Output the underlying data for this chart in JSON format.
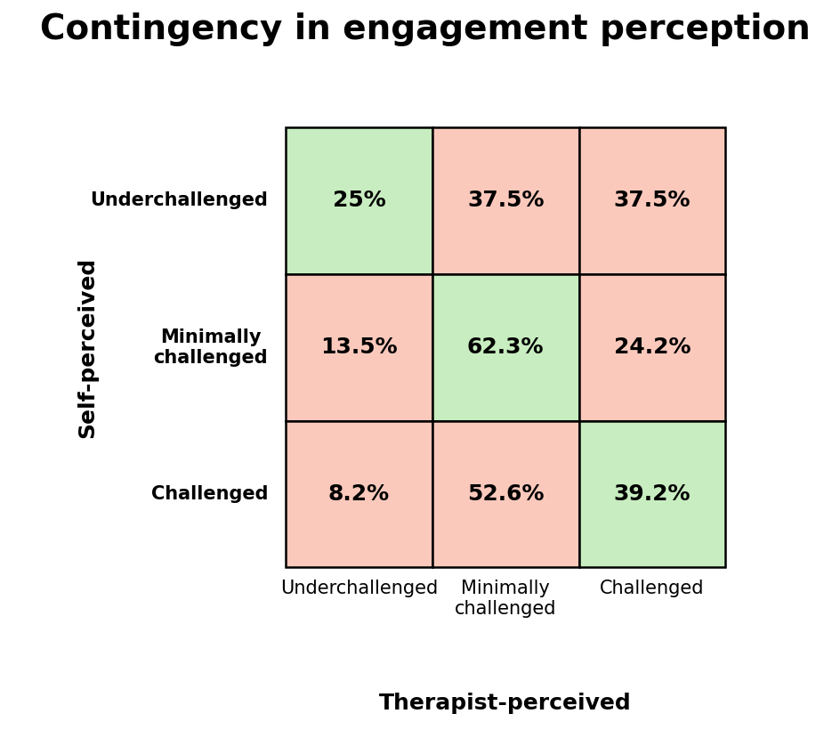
{
  "title": "Contingency in engagement perception",
  "xlabel": "Therapist-perceived",
  "ylabel": "Self-perceived",
  "row_labels": [
    "Underchallenged",
    "Minimally\nchallenged",
    "Challenged"
  ],
  "col_labels": [
    "Underchallenged",
    "Minimally\nchallenged",
    "Challenged"
  ],
  "values": [
    [
      "25%",
      "37.5%",
      "37.5%"
    ],
    [
      "13.5%",
      "62.3%",
      "24.2%"
    ],
    [
      "8.2%",
      "52.6%",
      "39.2%"
    ]
  ],
  "cell_colors": [
    [
      "#c8edc0",
      "#fbc9bc",
      "#fbc9bc"
    ],
    [
      "#fbc9bc",
      "#c8edc0",
      "#fbc9bc"
    ],
    [
      "#fbc9bc",
      "#fbc9bc",
      "#c8edc0"
    ]
  ],
  "title_fontsize": 28,
  "label_fontsize": 18,
  "row_label_fontsize": 15,
  "col_label_fontsize": 15,
  "value_fontsize": 18,
  "background_color": "#ffffff"
}
